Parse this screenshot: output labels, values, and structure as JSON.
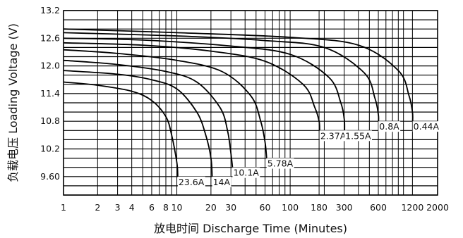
{
  "chart_data": {
    "type": "line",
    "title": "",
    "xlabel": "放电时间 Discharge Time (Minutes)",
    "ylabel": "负载电压 Loading Voltage (V)",
    "x_scale": "log",
    "xlim": [
      1,
      2000
    ],
    "ylim": [
      9.2,
      13.2
    ],
    "grid": true,
    "x_ticks": [
      1,
      2,
      3,
      4,
      6,
      8,
      10,
      20,
      30,
      60,
      100,
      180,
      300,
      600,
      1200,
      2000
    ],
    "x_tick_labels": [
      "1",
      "2",
      "3",
      "4",
      "6",
      "8",
      "10",
      "20",
      "30",
      "60",
      "100",
      "180",
      "300",
      "600",
      "1200",
      "2000"
    ],
    "y_ticks": [
      9.6,
      10.2,
      10.8,
      11.4,
      12.0,
      12.6,
      13.2
    ],
    "y_tick_labels": [
      "9.60",
      "10.2",
      "10.8",
      "11.4",
      "12.0",
      "12.6",
      "13.2"
    ],
    "series": [
      {
        "name": "23.6A",
        "x": [
          1,
          2,
          4,
          6,
          8,
          9,
          10,
          10.2
        ],
        "y": [
          11.65,
          11.58,
          11.45,
          11.25,
          10.9,
          10.5,
          9.9,
          9.6
        ]
      },
      {
        "name": "14A",
        "x": [
          1,
          3,
          6,
          10,
          15,
          18,
          20,
          20.5
        ],
        "y": [
          11.9,
          11.82,
          11.7,
          11.5,
          11.0,
          10.5,
          10.0,
          9.6
        ]
      },
      {
        "name": "10.1A",
        "x": [
          1,
          3,
          8,
          15,
          24,
          28,
          30,
          31
        ],
        "y": [
          12.12,
          12.03,
          11.88,
          11.65,
          11.1,
          10.6,
          10.1,
          9.8
        ]
      },
      {
        "name": "5.78A",
        "x": [
          1,
          3,
          10,
          25,
          45,
          55,
          60,
          62
        ],
        "y": [
          12.35,
          12.27,
          12.12,
          11.88,
          11.35,
          10.8,
          10.35,
          10.0
        ]
      },
      {
        "name": "2.37A",
        "x": [
          1,
          5,
          20,
          60,
          130,
          165,
          180,
          182
        ],
        "y": [
          12.5,
          12.45,
          12.32,
          12.1,
          11.6,
          11.1,
          10.8,
          10.6
        ]
      },
      {
        "name": "1.55A",
        "x": [
          1,
          5,
          30,
          100,
          220,
          280,
          300,
          302
        ],
        "y": [
          12.6,
          12.56,
          12.43,
          12.25,
          11.75,
          11.2,
          10.85,
          10.6
        ]
      },
      {
        "name": "0.8A",
        "x": [
          1,
          10,
          60,
          200,
          450,
          560,
          600,
          602
        ],
        "y": [
          12.72,
          12.65,
          12.55,
          12.4,
          11.85,
          11.3,
          10.95,
          10.8
        ]
      },
      {
        "name": "0.44A",
        "x": [
          1,
          10,
          100,
          400,
          900,
          1120,
          1200,
          1205
        ],
        "y": [
          12.8,
          12.72,
          12.62,
          12.45,
          11.9,
          11.35,
          11.0,
          10.8
        ]
      }
    ],
    "labels": [
      {
        "text": "23.6A",
        "series": "23.6A"
      },
      {
        "text": "14A",
        "series": "14A"
      },
      {
        "text": "10.1A",
        "series": "10.1A"
      },
      {
        "text": "5.78A",
        "series": "5.78A"
      },
      {
        "text": "2.37A",
        "series": "2.37A"
      },
      {
        "text": "1.55A",
        "series": "1.55A"
      },
      {
        "text": "0.8A",
        "series": "0.8A"
      },
      {
        "text": "0.44A",
        "series": "0.44A"
      }
    ]
  }
}
